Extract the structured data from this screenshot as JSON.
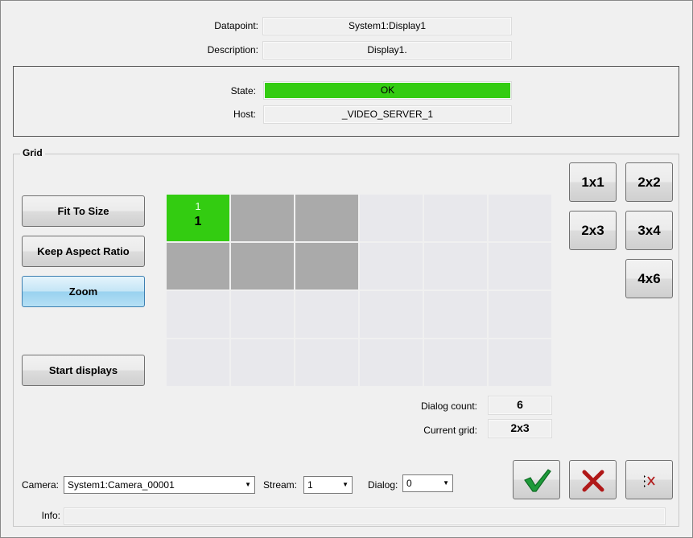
{
  "header": {
    "datapoint_label": "Datapoint:",
    "datapoint": "System1:Display1",
    "description_label": "Description:",
    "description": "Display1."
  },
  "status": {
    "state_label": "State:",
    "state": "OK",
    "state_color": "#33cc11",
    "host_label": "Host:",
    "host": "_VIDEO_SERVER_1"
  },
  "grid": {
    "title": "Grid",
    "buttons": {
      "fit": "Fit To Size",
      "aspect": "Keep Aspect Ratio",
      "zoom": "Zoom",
      "start": "Start displays"
    },
    "layouts": [
      "1x1",
      "2x2",
      "2x3",
      "3x4",
      "4x6"
    ],
    "cell_top": "1",
    "cell_bottom": "1",
    "columns": 6,
    "rows": 4,
    "active_columns": 3,
    "active_rows": 2,
    "dialog_count_label": "Dialog count:",
    "dialog_count": "6",
    "current_grid_label": "Current grid:",
    "current_grid": "2x3"
  },
  "bottom": {
    "camera_label": "Camera:",
    "camera": "System1:Camera_00001",
    "stream_label": "Stream:",
    "stream": "1",
    "dialog_label": "Dialog:",
    "dialog": "0",
    "info_label": "Info:",
    "info": ""
  },
  "icons": {
    "ok": "checkmark-icon",
    "cancel": "x-icon",
    "clear": "clear-icon"
  }
}
